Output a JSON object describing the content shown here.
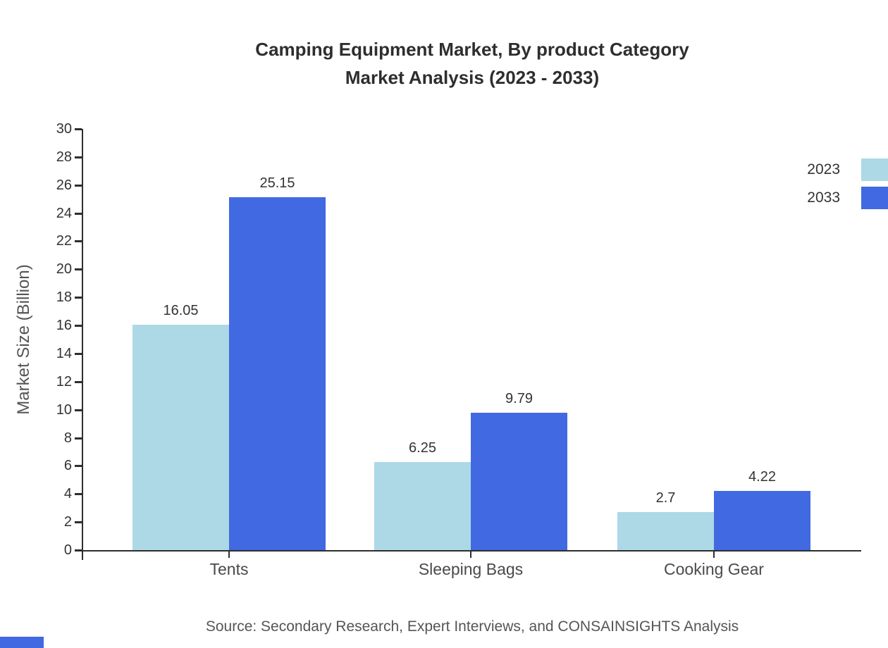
{
  "chart": {
    "title_line1": "Camping Equipment Market, By product Category",
    "title_line2": "Market Analysis (2023 - 2033)",
    "ylabel": "Market Size (Billion)",
    "source": "Source: Secondary Research, Expert Interviews, and CONSAINSIGHTS Analysis"
  },
  "chart_data": {
    "type": "bar",
    "title": "Camping Equipment Market, By product Category Market Analysis (2023 - 2033)",
    "categories": [
      "Tents",
      "Sleeping Bags",
      "Cooking Gear"
    ],
    "series": [
      {
        "name": "2023",
        "color": "#add8e6",
        "values": [
          16.05,
          6.25,
          2.7
        ]
      },
      {
        "name": "2033",
        "color": "#4169e1",
        "values": [
          25.15,
          9.79,
          4.22
        ]
      }
    ],
    "xlabel": "",
    "ylabel": "Market Size (Billion)",
    "ylim": [
      0,
      30
    ],
    "ytick_step": 2,
    "grid": false,
    "legend_position": "top-right",
    "accent_color": "#4169e1"
  }
}
